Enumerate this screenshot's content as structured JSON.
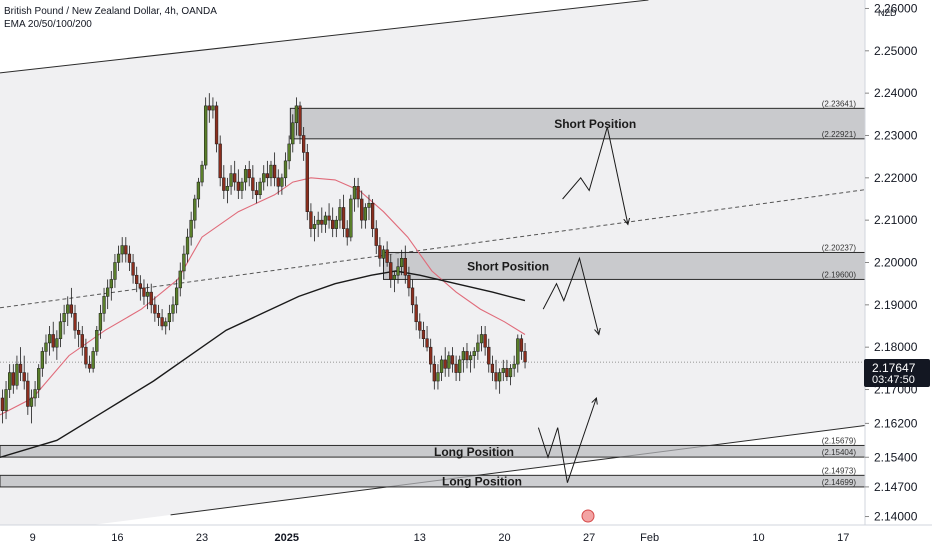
{
  "header": {
    "title": "British Pound / New Zealand Dollar, 4h, OANDA",
    "indicators": "EMA 20/50/100/200"
  },
  "axis": {
    "currency": "NZD",
    "current_price": "2.17647",
    "countdown": "03:47:50"
  },
  "colors": {
    "up_candle": "#5a7f2a",
    "down_candle": "#8b2e1e",
    "ema_fast": "#e06b7a",
    "ema_slow": "#1a1a1a",
    "zone_fill": "#b8b9bd",
    "zone_border": "#2b2b2b",
    "channel_fill": "#f0f0f2",
    "price_box": "#131722"
  },
  "chart_data": {
    "type": "candlestick",
    "symbol": "GBPNZD",
    "timeframe": "4h",
    "x_ticks": [
      {
        "label": "9",
        "t": 0
      },
      {
        "label": "16",
        "t": 7
      },
      {
        "label": "23",
        "t": 14
      },
      {
        "label": "2025",
        "t": 21,
        "bold": true
      },
      {
        "label": "13",
        "t": 32
      },
      {
        "label": "20",
        "t": 39
      },
      {
        "label": "27",
        "t": 46
      },
      {
        "label": "Feb",
        "t": 51
      },
      {
        "label": "10",
        "t": 60
      },
      {
        "label": "17",
        "t": 67
      }
    ],
    "y_ticks": [
      "2.26000",
      "2.25000",
      "2.24000",
      "2.23000",
      "2.22000",
      "2.21000",
      "2.20000",
      "2.19000",
      "2.18000",
      "2.17000",
      "2.16200",
      "2.15400",
      "2.14700",
      "2.14000"
    ],
    "ylim": [
      2.138,
      2.262
    ],
    "xlim": [
      -2.7,
      68.8
    ],
    "current_price": 2.17647,
    "zones": [
      {
        "label": "Short Position",
        "top": 2.23641,
        "bottom": 2.22921,
        "top_label": "(2.23641)",
        "bottom_label": "(2.22921)"
      },
      {
        "label": "Short Position",
        "top": 2.20237,
        "bottom": 2.196,
        "top_label": "(2.20237)",
        "bottom_label": "(2.19600)"
      },
      {
        "label": "Long Position",
        "top": 2.15679,
        "bottom": 2.15404,
        "top_label": "(2.15679)",
        "bottom_label": "(2.15404)"
      },
      {
        "label": "Long Position",
        "top": 2.14973,
        "bottom": 2.14699,
        "top_label": "(2.14973)",
        "bottom_label": "(2.14699)"
      }
    ],
    "channel": {
      "upper": [
        [
          -2.7,
          2.2448
        ],
        [
          50.9,
          2.262
        ]
      ],
      "lower": [
        [
          11.4,
          2.1404
        ],
        [
          68.8,
          2.1615
        ]
      ],
      "mid": [
        [
          -2.7,
          2.1893
        ],
        [
          68.8,
          2.2172
        ]
      ]
    },
    "candles": [
      [
        -2.5,
        2.168,
        2.17,
        2.162,
        2.165
      ],
      [
        -2.2,
        2.165,
        2.172,
        2.163,
        2.17
      ],
      [
        -1.9,
        2.17,
        2.176,
        2.168,
        2.174
      ],
      [
        -1.6,
        2.174,
        2.176,
        2.169,
        2.171
      ],
      [
        -1.3,
        2.171,
        2.178,
        2.17,
        2.176
      ],
      [
        -1.0,
        2.176,
        2.18,
        2.172,
        2.174
      ],
      [
        -0.7,
        2.174,
        2.178,
        2.17,
        2.172
      ],
      [
        -0.4,
        2.172,
        2.174,
        2.164,
        2.166
      ],
      [
        -0.1,
        2.166,
        2.17,
        2.162,
        2.168
      ],
      [
        0.2,
        2.168,
        2.172,
        2.166,
        2.17
      ],
      [
        0.5,
        2.17,
        2.176,
        2.168,
        2.175
      ],
      [
        0.8,
        2.175,
        2.18,
        2.173,
        2.179
      ],
      [
        1.1,
        2.179,
        2.183,
        2.176,
        2.181
      ],
      [
        1.4,
        2.181,
        2.185,
        2.178,
        2.183
      ],
      [
        1.7,
        2.183,
        2.186,
        2.179,
        2.18
      ],
      [
        2.0,
        2.18,
        2.184,
        2.177,
        2.182
      ],
      [
        2.3,
        2.182,
        2.188,
        2.18,
        2.186
      ],
      [
        2.6,
        2.186,
        2.19,
        2.183,
        2.188
      ],
      [
        2.9,
        2.188,
        2.192,
        2.185,
        2.19
      ],
      [
        3.2,
        2.19,
        2.194,
        2.187,
        2.188
      ],
      [
        3.5,
        2.188,
        2.19,
        2.182,
        2.184
      ],
      [
        3.8,
        2.184,
        2.186,
        2.18,
        2.183
      ],
      [
        4.1,
        2.183,
        2.185,
        2.178,
        2.18
      ],
      [
        4.4,
        2.18,
        2.182,
        2.175,
        2.176
      ],
      [
        4.7,
        2.176,
        2.178,
        2.174,
        2.175
      ],
      [
        5.0,
        2.175,
        2.18,
        2.174,
        2.179
      ],
      [
        5.3,
        2.179,
        2.185,
        2.178,
        2.184
      ],
      [
        5.6,
        2.184,
        2.19,
        2.182,
        2.188
      ],
      [
        5.9,
        2.188,
        2.194,
        2.186,
        2.192
      ],
      [
        6.2,
        2.192,
        2.196,
        2.189,
        2.194
      ],
      [
        6.5,
        2.194,
        2.198,
        2.191,
        2.196
      ],
      [
        6.8,
        2.196,
        2.202,
        2.194,
        2.2
      ],
      [
        7.1,
        2.2,
        2.204,
        2.198,
        2.202
      ],
      [
        7.4,
        2.202,
        2.206,
        2.2,
        2.204
      ],
      [
        7.7,
        2.204,
        2.206,
        2.2,
        2.202
      ],
      [
        8.0,
        2.202,
        2.204,
        2.198,
        2.2
      ],
      [
        8.3,
        2.2,
        2.202,
        2.195,
        2.197
      ],
      [
        8.6,
        2.197,
        2.199,
        2.193,
        2.195
      ],
      [
        8.9,
        2.195,
        2.197,
        2.191,
        2.194
      ],
      [
        9.2,
        2.194,
        2.196,
        2.19,
        2.192
      ],
      [
        9.5,
        2.192,
        2.195,
        2.189,
        2.193
      ],
      [
        9.8,
        2.193,
        2.195,
        2.188,
        2.19
      ],
      [
        10.1,
        2.19,
        2.192,
        2.186,
        2.188
      ],
      [
        10.4,
        2.188,
        2.19,
        2.185,
        2.187
      ],
      [
        10.7,
        2.187,
        2.189,
        2.184,
        2.185
      ],
      [
        11.0,
        2.185,
        2.187,
        2.183,
        2.186
      ],
      [
        11.3,
        2.186,
        2.19,
        2.184,
        2.188
      ],
      [
        11.6,
        2.188,
        2.192,
        2.186,
        2.19
      ],
      [
        11.9,
        2.19,
        2.196,
        2.188,
        2.194
      ],
      [
        12.2,
        2.194,
        2.2,
        2.192,
        2.198
      ],
      [
        12.5,
        2.198,
        2.204,
        2.196,
        2.202
      ],
      [
        12.8,
        2.202,
        2.208,
        2.2,
        2.206
      ],
      [
        13.1,
        2.206,
        2.212,
        2.204,
        2.21
      ],
      [
        13.4,
        2.21,
        2.216,
        2.208,
        2.215
      ],
      [
        13.7,
        2.215,
        2.22,
        2.213,
        2.219
      ],
      [
        14.0,
        2.219,
        2.224,
        2.218,
        2.223
      ],
      [
        14.3,
        2.223,
        2.239,
        2.222,
        2.237
      ],
      [
        14.6,
        2.237,
        2.24,
        2.233,
        2.236
      ],
      [
        14.9,
        2.236,
        2.239,
        2.234,
        2.237
      ],
      [
        15.2,
        2.237,
        2.238,
        2.226,
        2.228
      ],
      [
        15.5,
        2.228,
        2.23,
        2.218,
        2.22
      ],
      [
        15.8,
        2.22,
        2.223,
        2.215,
        2.217
      ],
      [
        16.1,
        2.217,
        2.22,
        2.214,
        2.218
      ],
      [
        16.4,
        2.218,
        2.223,
        2.216,
        2.221
      ],
      [
        16.7,
        2.221,
        2.224,
        2.217,
        2.219
      ],
      [
        17.0,
        2.219,
        2.222,
        2.215,
        2.217
      ],
      [
        17.3,
        2.217,
        2.22,
        2.215,
        2.219
      ],
      [
        17.6,
        2.219,
        2.223,
        2.217,
        2.222
      ],
      [
        17.9,
        2.222,
        2.224,
        2.218,
        2.22
      ],
      [
        18.2,
        2.22,
        2.223,
        2.215,
        2.217
      ],
      [
        18.5,
        2.217,
        2.219,
        2.214,
        2.216
      ],
      [
        18.8,
        2.216,
        2.22,
        2.215,
        2.219
      ],
      [
        19.1,
        2.219,
        2.223,
        2.217,
        2.221
      ],
      [
        19.4,
        2.221,
        2.224,
        2.218,
        2.22
      ],
      [
        19.7,
        2.22,
        2.224,
        2.218,
        2.223
      ],
      [
        20.0,
        2.223,
        2.226,
        2.218,
        2.22
      ],
      [
        20.3,
        2.22,
        2.222,
        2.216,
        2.218
      ],
      [
        20.6,
        2.218,
        2.221,
        2.216,
        2.22
      ],
      [
        20.9,
        2.22,
        2.226,
        2.218,
        2.224
      ],
      [
        21.2,
        2.224,
        2.23,
        2.222,
        2.228
      ],
      [
        21.5,
        2.228,
        2.235,
        2.226,
        2.233
      ],
      [
        21.8,
        2.233,
        2.239,
        2.23,
        2.237
      ],
      [
        22.1,
        2.237,
        2.238,
        2.228,
        2.23
      ],
      [
        22.4,
        2.23,
        2.232,
        2.224,
        2.226
      ],
      [
        22.7,
        2.226,
        2.228,
        2.21,
        2.212
      ],
      [
        23.0,
        2.212,
        2.214,
        2.206,
        2.208
      ],
      [
        23.3,
        2.208,
        2.211,
        2.205,
        2.209
      ],
      [
        23.6,
        2.209,
        2.212,
        2.206,
        2.21
      ],
      [
        23.9,
        2.21,
        2.213,
        2.207,
        2.209
      ],
      [
        24.2,
        2.209,
        2.212,
        2.207,
        2.211
      ],
      [
        24.5,
        2.211,
        2.214,
        2.208,
        2.21
      ],
      [
        24.8,
        2.21,
        2.213,
        2.206,
        2.208
      ],
      [
        25.1,
        2.208,
        2.211,
        2.206,
        2.21
      ],
      [
        25.4,
        2.21,
        2.215,
        2.208,
        2.213
      ],
      [
        25.7,
        2.213,
        2.216,
        2.206,
        2.208
      ],
      [
        26.0,
        2.208,
        2.21,
        2.204,
        2.206
      ],
      [
        26.3,
        2.206,
        2.216,
        2.205,
        2.215
      ],
      [
        26.6,
        2.215,
        2.22,
        2.212,
        2.218
      ],
      [
        26.9,
        2.218,
        2.22,
        2.213,
        2.215
      ],
      [
        27.2,
        2.215,
        2.217,
        2.208,
        2.21
      ],
      [
        27.5,
        2.21,
        2.214,
        2.208,
        2.213
      ],
      [
        27.8,
        2.213,
        2.216,
        2.21,
        2.214
      ],
      [
        28.1,
        2.214,
        2.215,
        2.206,
        2.208
      ],
      [
        28.4,
        2.208,
        2.21,
        2.202,
        2.204
      ],
      [
        28.7,
        2.204,
        2.206,
        2.199,
        2.201
      ],
      [
        29.0,
        2.201,
        2.204,
        2.199,
        2.203
      ],
      [
        29.3,
        2.203,
        2.205,
        2.199,
        2.2
      ],
      [
        29.6,
        2.2,
        2.202,
        2.194,
        2.196
      ],
      [
        29.9,
        2.196,
        2.198,
        2.193,
        2.197
      ],
      [
        30.2,
        2.197,
        2.201,
        2.195,
        2.199
      ],
      [
        30.5,
        2.199,
        2.203,
        2.197,
        2.201
      ],
      [
        30.8,
        2.201,
        2.204,
        2.195,
        2.197
      ],
      [
        31.1,
        2.197,
        2.199,
        2.192,
        2.194
      ],
      [
        31.4,
        2.194,
        2.196,
        2.188,
        2.19
      ],
      [
        31.7,
        2.19,
        2.192,
        2.184,
        2.186
      ],
      [
        32.0,
        2.186,
        2.188,
        2.182,
        2.184
      ],
      [
        32.3,
        2.184,
        2.186,
        2.18,
        2.182
      ],
      [
        32.6,
        2.182,
        2.185,
        2.179,
        2.18
      ],
      [
        32.9,
        2.18,
        2.182,
        2.174,
        2.176
      ],
      [
        33.2,
        2.176,
        2.178,
        2.17,
        2.172
      ],
      [
        33.5,
        2.172,
        2.176,
        2.17,
        2.174
      ],
      [
        33.8,
        2.174,
        2.178,
        2.172,
        2.177
      ],
      [
        34.1,
        2.177,
        2.18,
        2.173,
        2.175
      ],
      [
        34.4,
        2.175,
        2.179,
        2.173,
        2.178
      ],
      [
        34.7,
        2.178,
        2.18,
        2.174,
        2.176
      ],
      [
        35.0,
        2.176,
        2.178,
        2.172,
        2.174
      ],
      [
        35.3,
        2.174,
        2.178,
        2.172,
        2.177
      ],
      [
        35.6,
        2.177,
        2.18,
        2.174,
        2.179
      ],
      [
        35.9,
        2.179,
        2.181,
        2.175,
        2.177
      ],
      [
        36.2,
        2.177,
        2.179,
        2.174,
        2.178
      ],
      [
        36.5,
        2.178,
        2.18,
        2.175,
        2.179
      ],
      [
        36.8,
        2.179,
        2.183,
        2.177,
        2.181
      ],
      [
        37.1,
        2.181,
        2.185,
        2.179,
        2.183
      ],
      [
        37.4,
        2.183,
        2.185,
        2.178,
        2.18
      ],
      [
        37.7,
        2.18,
        2.182,
        2.174,
        2.176
      ],
      [
        38.0,
        2.176,
        2.178,
        2.172,
        2.174
      ],
      [
        38.3,
        2.174,
        2.177,
        2.17,
        2.172
      ],
      [
        38.6,
        2.172,
        2.175,
        2.169,
        2.174
      ],
      [
        38.9,
        2.174,
        2.177,
        2.172,
        2.175
      ],
      [
        39.2,
        2.175,
        2.177,
        2.172,
        2.173
      ],
      [
        39.5,
        2.173,
        2.176,
        2.171,
        2.175
      ],
      [
        39.8,
        2.175,
        2.178,
        2.173,
        2.176
      ],
      [
        40.1,
        2.176,
        2.183,
        2.174,
        2.182
      ],
      [
        40.4,
        2.182,
        2.183,
        2.177,
        2.179
      ],
      [
        40.7,
        2.179,
        2.181,
        2.175,
        2.1765
      ]
    ],
    "ema_fast": [
      [
        -2.7,
        2.164
      ],
      [
        0,
        2.168
      ],
      [
        3,
        2.178
      ],
      [
        6,
        2.184
      ],
      [
        9,
        2.189
      ],
      [
        12,
        2.196
      ],
      [
        14,
        2.206
      ],
      [
        17,
        2.212
      ],
      [
        20,
        2.216
      ],
      [
        21.5,
        2.219
      ],
      [
        23,
        2.22
      ],
      [
        25,
        2.2195
      ],
      [
        27,
        2.217
      ],
      [
        29,
        2.212
      ],
      [
        31,
        2.206
      ],
      [
        33,
        2.198
      ],
      [
        35,
        2.193
      ],
      [
        37,
        2.189
      ],
      [
        39,
        2.186
      ],
      [
        40.7,
        2.183
      ]
    ],
    "ema_slow": [
      [
        -2.7,
        2.154
      ],
      [
        2,
        2.158
      ],
      [
        6,
        2.165
      ],
      [
        10,
        2.172
      ],
      [
        13,
        2.178
      ],
      [
        16,
        2.184
      ],
      [
        19,
        2.188
      ],
      [
        22,
        2.192
      ],
      [
        25,
        2.195
      ],
      [
        28,
        2.197
      ],
      [
        30,
        2.198
      ],
      [
        32,
        2.197
      ],
      [
        35,
        2.195
      ],
      [
        38,
        2.193
      ],
      [
        40.7,
        2.191
      ]
    ],
    "projections": [
      [
        [
          43.8,
          2.215
        ],
        [
          45.3,
          2.22
        ],
        [
          46.0,
          2.217
        ],
        [
          47.5,
          2.232
        ],
        [
          49.2,
          2.209
        ]
      ],
      [
        [
          42.2,
          2.189
        ],
        [
          43.3,
          2.195
        ],
        [
          43.9,
          2.191
        ],
        [
          45.2,
          2.201
        ],
        [
          46.8,
          2.183
        ]
      ],
      [
        [
          41.8,
          2.161
        ],
        [
          42.6,
          2.154
        ],
        [
          43.4,
          2.161
        ],
        [
          44.2,
          2.148
        ],
        [
          46.6,
          2.168
        ]
      ]
    ]
  }
}
